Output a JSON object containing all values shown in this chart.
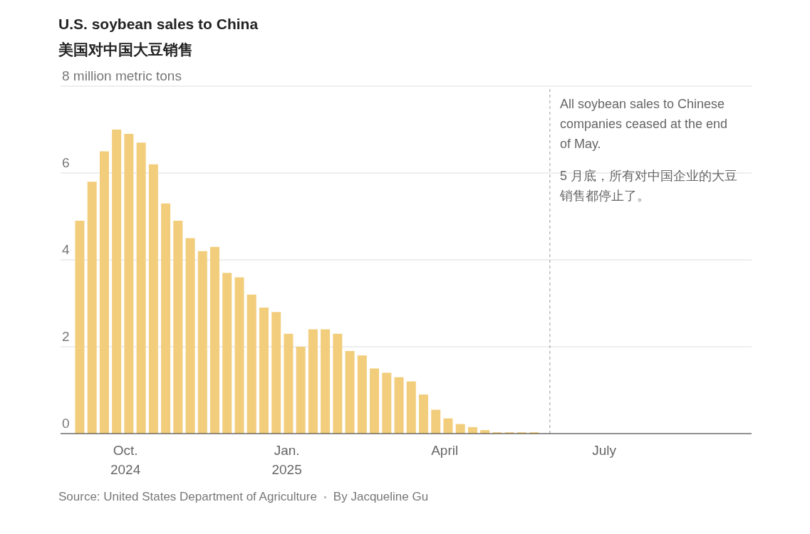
{
  "chart_data": {
    "type": "bar",
    "title": "U.S. soybean sales to China",
    "subtitle": "美国对中国大豆销售",
    "x": [
      "2024-09-05",
      "2024-09-12",
      "2024-09-19",
      "2024-09-26",
      "2024-10-03",
      "2024-10-10",
      "2024-10-17",
      "2024-10-24",
      "2024-10-31",
      "2024-11-07",
      "2024-11-14",
      "2024-11-21",
      "2024-11-28",
      "2024-12-05",
      "2024-12-12",
      "2024-12-19",
      "2024-12-26",
      "2025-01-02",
      "2025-01-09",
      "2025-01-16",
      "2025-01-23",
      "2025-01-30",
      "2025-02-06",
      "2025-02-13",
      "2025-02-20",
      "2025-02-27",
      "2025-03-06",
      "2025-03-13",
      "2025-03-20",
      "2025-03-27",
      "2025-04-03",
      "2025-04-10",
      "2025-04-17",
      "2025-04-24",
      "2025-05-01",
      "2025-05-08",
      "2025-05-15",
      "2025-05-22"
    ],
    "values": [
      4.9,
      5.8,
      6.5,
      7.0,
      6.9,
      6.7,
      6.2,
      5.3,
      4.9,
      4.5,
      4.2,
      4.3,
      3.7,
      3.6,
      3.2,
      2.9,
      2.8,
      2.3,
      2.0,
      2.4,
      2.4,
      2.3,
      1.9,
      1.8,
      1.5,
      1.4,
      1.3,
      1.2,
      0.9,
      0.55,
      0.35,
      0.22,
      0.15,
      0.08,
      0.03,
      0.03,
      0.03,
      0.03
    ],
    "color": "#f2cd7c",
    "xlim": [
      "2024-08-25",
      "2025-09-23"
    ],
    "xticks": [
      {
        "value": "2024-10-01",
        "label": "Oct.\n2024"
      },
      {
        "value": "2025-01-01",
        "label": "Jan.\n2025"
      },
      {
        "value": "2025-04-01",
        "label": "April"
      },
      {
        "value": "2025-07-01",
        "label": "July"
      }
    ],
    "ylim": [
      0,
      8
    ],
    "yticks": [
      0,
      2,
      4,
      6,
      {
        "value": 8,
        "label": "8 million metric tons"
      }
    ],
    "grid": "y",
    "ref_lines": [
      {
        "axis": "x",
        "value": "2025-05-31",
        "color": "#999999",
        "line_style": "dashed"
      }
    ],
    "annotations": [
      {
        "text": "All soybean sales to Chinese companies ceased at the end of May.",
        "x": "2025-05-31",
        "y": 7.75
      },
      {
        "text": "5 月底，所有对中国企业的大豆销售都停止了。",
        "x": "2025-05-31",
        "y": 6.1
      },
      "Source: United States Department of Agriculture",
      "By Jacqueline Gu"
    ]
  }
}
